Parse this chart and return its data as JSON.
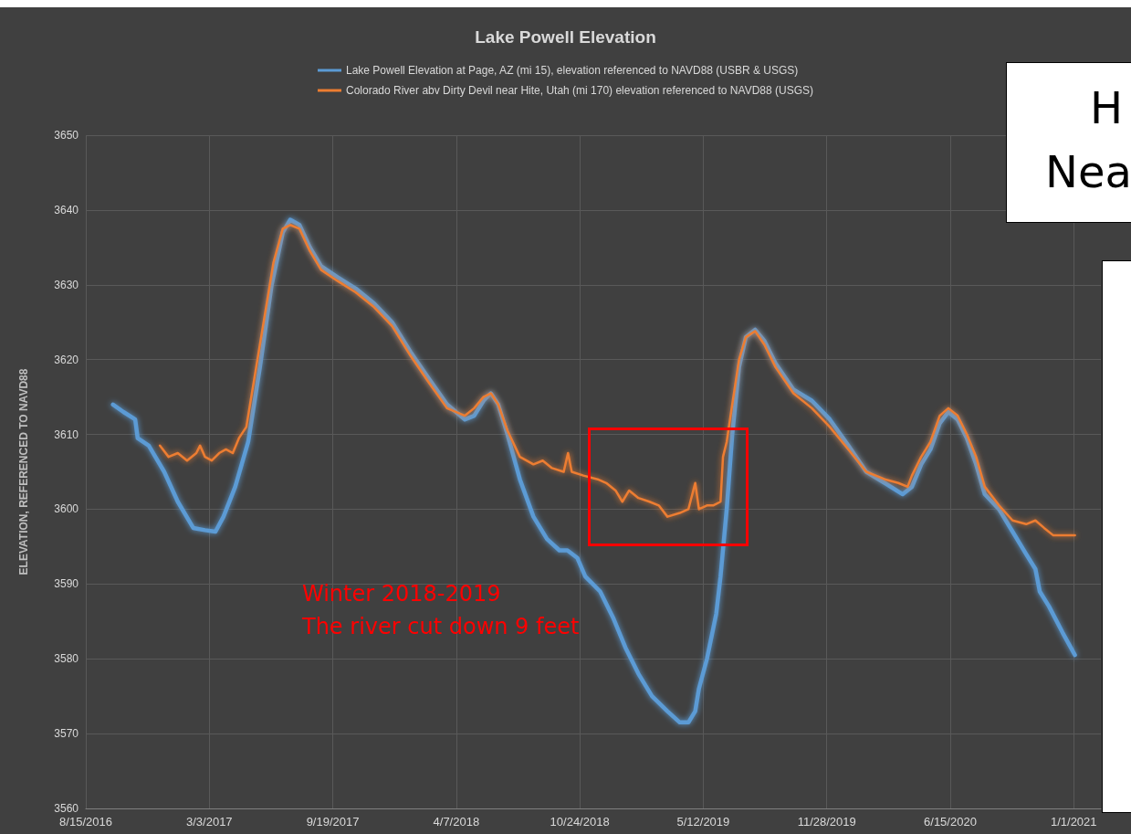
{
  "chart_data": {
    "type": "line",
    "title": "Lake Powell Elevation",
    "ylabel": "ELEVATION, REFERENCED TO NAVD88",
    "xlim": [
      "2016-08-15",
      "2021-02-14"
    ],
    "xticks": [
      {
        "value": "2016-08-15",
        "label": "8/15/2016"
      },
      {
        "value": "2017-03-03",
        "label": "3/3/2017"
      },
      {
        "value": "2017-09-19",
        "label": "9/19/2017"
      },
      {
        "value": "2018-04-07",
        "label": "4/7/2018"
      },
      {
        "value": "2018-10-24",
        "label": "10/24/2018"
      },
      {
        "value": "2019-05-12",
        "label": "5/12/2019"
      },
      {
        "value": "2019-11-28",
        "label": "11/28/2019"
      },
      {
        "value": "2020-06-15",
        "label": "6/15/2020"
      },
      {
        "value": "2021-01-01",
        "label": "1/1/2021"
      }
    ],
    "ylim": [
      3560,
      3650
    ],
    "yticks": [
      3560,
      3570,
      3580,
      3590,
      3600,
      3610,
      3620,
      3630,
      3640,
      3650
    ],
    "grid": true,
    "legend": "top",
    "marker": "none",
    "line_style": "solid",
    "annotations": [
      "Winter 2018-2019",
      "The river cut down 9 feet",
      "H",
      "Nea"
    ],
    "series": [
      {
        "name": "Lake Powell Elevation at Page, AZ (mi 15), elevation referenced to NAVD88 (USBR & USGS)",
        "color": "#5b9bd5",
        "x": [
          "2016-09-28",
          "2016-10-15",
          "2016-11-03",
          "2016-11-07",
          "2016-11-25",
          "2016-12-20",
          "2017-01-11",
          "2017-02-05",
          "2017-02-24",
          "2017-03-13",
          "2017-03-26",
          "2017-04-14",
          "2017-05-05",
          "2017-05-24",
          "2017-06-12",
          "2017-06-30",
          "2017-07-12",
          "2017-07-27",
          "2017-08-13",
          "2017-08-31",
          "2017-09-27",
          "2017-10-26",
          "2017-11-25",
          "2017-12-24",
          "2018-01-23",
          "2018-02-21",
          "2018-03-23",
          "2018-04-21",
          "2018-05-06",
          "2018-05-21",
          "2018-06-02",
          "2018-06-14",
          "2018-06-29",
          "2018-07-19",
          "2018-08-10",
          "2018-09-01",
          "2018-09-21",
          "2018-10-04",
          "2018-10-20",
          "2018-11-02",
          "2018-11-26",
          "2018-12-17",
          "2019-01-06",
          "2019-01-27",
          "2019-02-18",
          "2019-03-15",
          "2019-04-04",
          "2019-04-18",
          "2019-04-29",
          "2019-05-05",
          "2019-05-18",
          "2019-06-02",
          "2019-06-09",
          "2019-06-19",
          "2019-06-28",
          "2019-07-09",
          "2019-07-20",
          "2019-08-04",
          "2019-08-19",
          "2019-09-06",
          "2019-10-05",
          "2019-11-04",
          "2019-12-03",
          "2020-01-02",
          "2020-01-31",
          "2020-03-01",
          "2020-03-30",
          "2020-04-14",
          "2020-04-29",
          "2020-05-14",
          "2020-05-29",
          "2020-06-12",
          "2020-06-27",
          "2020-07-12",
          "2020-07-27",
          "2020-08-10",
          "2020-09-02",
          "2020-09-24",
          "2020-10-16",
          "2020-10-31",
          "2020-11-07",
          "2020-11-22",
          "2020-12-14",
          "2021-01-03"
        ],
        "values": [
          3614,
          3613,
          3612,
          3609.5,
          3608.5,
          3605,
          3601,
          3597.5,
          3597.2,
          3597,
          3599,
          3603,
          3609,
          3619,
          3630,
          3637,
          3638.7,
          3638,
          3635,
          3632.5,
          3631,
          3629.5,
          3627.5,
          3625,
          3621,
          3617.5,
          3614,
          3612,
          3612.5,
          3614.5,
          3615.5,
          3614,
          3610,
          3604,
          3599,
          3596,
          3594.5,
          3594.5,
          3593.5,
          3591,
          3589,
          3585.5,
          3581.5,
          3578,
          3575,
          3573,
          3571.5,
          3571.5,
          3573,
          3576,
          3580,
          3586,
          3591,
          3600,
          3610,
          3619,
          3623,
          3624,
          3622.5,
          3619.5,
          3616,
          3614.5,
          3612,
          3608.5,
          3605,
          3603.5,
          3602,
          3603,
          3606,
          3608,
          3611.5,
          3613,
          3612,
          3609.5,
          3606,
          3602,
          3600,
          3597,
          3594,
          3592,
          3589,
          3587,
          3583.5,
          3580.5
        ]
      },
      {
        "name": "Colorado River abv Dirty Devil near Hite, Utah (mi 170) elevation referenced to NAVD88 (USGS)",
        "color": "#ed7d31",
        "x": [
          "2016-12-13",
          "2016-12-27",
          "2017-01-11",
          "2017-01-26",
          "2017-02-10",
          "2017-02-16",
          "2017-02-24",
          "2017-03-07",
          "2017-03-19",
          "2017-03-30",
          "2017-04-10",
          "2017-04-20",
          "2017-05-02",
          "2017-05-14",
          "2017-06-01",
          "2017-06-15",
          "2017-06-30",
          "2017-07-12",
          "2017-07-27",
          "2017-08-13",
          "2017-08-31",
          "2017-09-27",
          "2017-10-26",
          "2017-11-25",
          "2017-12-24",
          "2018-01-23",
          "2018-02-21",
          "2018-03-23",
          "2018-04-21",
          "2018-05-06",
          "2018-05-21",
          "2018-06-02",
          "2018-06-14",
          "2018-06-29",
          "2018-07-19",
          "2018-08-10",
          "2018-08-25",
          "2018-09-09",
          "2018-09-28",
          "2018-10-05",
          "2018-10-11",
          "2018-10-30",
          "2018-11-22",
          "2018-12-06",
          "2018-12-21",
          "2019-01-01",
          "2019-01-12",
          "2019-01-27",
          "2019-02-14",
          "2019-03-01",
          "2019-03-15",
          "2019-04-04",
          "2019-04-18",
          "2019-04-29",
          "2019-05-05",
          "2019-05-18",
          "2019-05-28",
          "2019-06-09",
          "2019-06-13",
          "2019-06-19",
          "2019-06-28",
          "2019-07-09",
          "2019-07-20",
          "2019-08-04",
          "2019-08-19",
          "2019-09-06",
          "2019-10-05",
          "2019-11-04",
          "2019-12-03",
          "2020-01-02",
          "2020-01-31",
          "2020-03-01",
          "2020-03-23",
          "2020-04-07",
          "2020-04-14",
          "2020-04-29",
          "2020-05-14",
          "2020-05-29",
          "2020-06-12",
          "2020-06-27",
          "2020-07-12",
          "2020-07-27",
          "2020-08-10",
          "2020-09-02",
          "2020-09-24",
          "2020-10-16",
          "2020-10-31",
          "2020-11-14",
          "2020-11-29",
          "2020-12-14",
          "2021-01-03"
        ],
        "values": [
          3608.5,
          3607,
          3607.5,
          3606.5,
          3607.5,
          3608.5,
          3607,
          3606.5,
          3607.5,
          3608,
          3607.5,
          3609.5,
          3611,
          3617,
          3626,
          3633,
          3637.5,
          3638,
          3637.5,
          3634.5,
          3632,
          3630.5,
          3629,
          3627,
          3624.5,
          3620.5,
          3617,
          3613.5,
          3612.5,
          3613.5,
          3615,
          3615.5,
          3614,
          3610.5,
          3607,
          3606,
          3606.5,
          3605.5,
          3605,
          3607.5,
          3605,
          3604.5,
          3604,
          3603.5,
          3602.5,
          3601,
          3602.5,
          3601.5,
          3601,
          3600.5,
          3599,
          3599.5,
          3600,
          3603.5,
          3600,
          3600.5,
          3600.5,
          3601,
          3607,
          3609,
          3614,
          3620,
          3623,
          3623.8,
          3622,
          3619,
          3615.5,
          3613.5,
          3611,
          3608,
          3605,
          3604,
          3603.5,
          3603,
          3604.5,
          3607,
          3609,
          3612.5,
          3613.5,
          3612.5,
          3610,
          3607,
          3603,
          3600.5,
          3598.5,
          3598,
          3598.5,
          3597.5,
          3596.5,
          3596.5,
          3596.5
        ]
      }
    ]
  }
}
